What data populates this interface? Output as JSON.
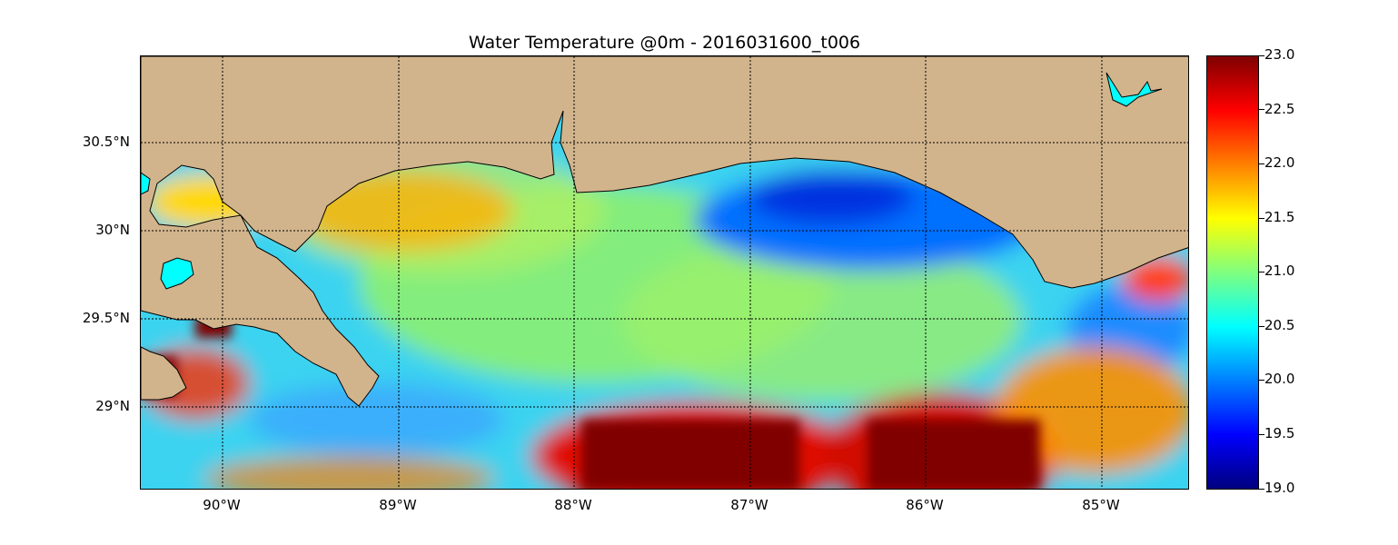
{
  "title": "Water Temperature @0m - 2016031600_t006",
  "y_axis": {
    "tick_labels": [
      "30.5°N",
      "30°N",
      "29.5°N",
      "29°N"
    ]
  },
  "x_axis": {
    "tick_labels": [
      "90°W",
      "89°W",
      "88°W",
      "87°W",
      "86°W",
      "85°W"
    ]
  },
  "colorbar": {
    "tick_labels": [
      "23.0",
      "22.5",
      "22.0",
      "21.5",
      "21.0",
      "20.5",
      "20.0",
      "19.5",
      "19.0"
    ],
    "min": 19.0,
    "max": 23.0,
    "colormap": "jet"
  },
  "colors": {
    "land": "#d2b48c",
    "lake": "#00ffff",
    "water_base": "#3ad3f0"
  },
  "chart_data": {
    "type": "heatmap",
    "title": "Water Temperature @0m - 2016031600_t006",
    "variable": "Water Temperature",
    "units": "",
    "depth": "0m",
    "x_range": [
      -90.5,
      -84.5
    ],
    "y_range": [
      28.55,
      31.0
    ],
    "x_ticks": [
      -90,
      -89,
      -88,
      -87,
      -86,
      -85
    ],
    "y_ticks": [
      29.0,
      29.5,
      30.0,
      30.5
    ],
    "value_range": [
      19.0,
      23.0
    ],
    "grid": true
  }
}
